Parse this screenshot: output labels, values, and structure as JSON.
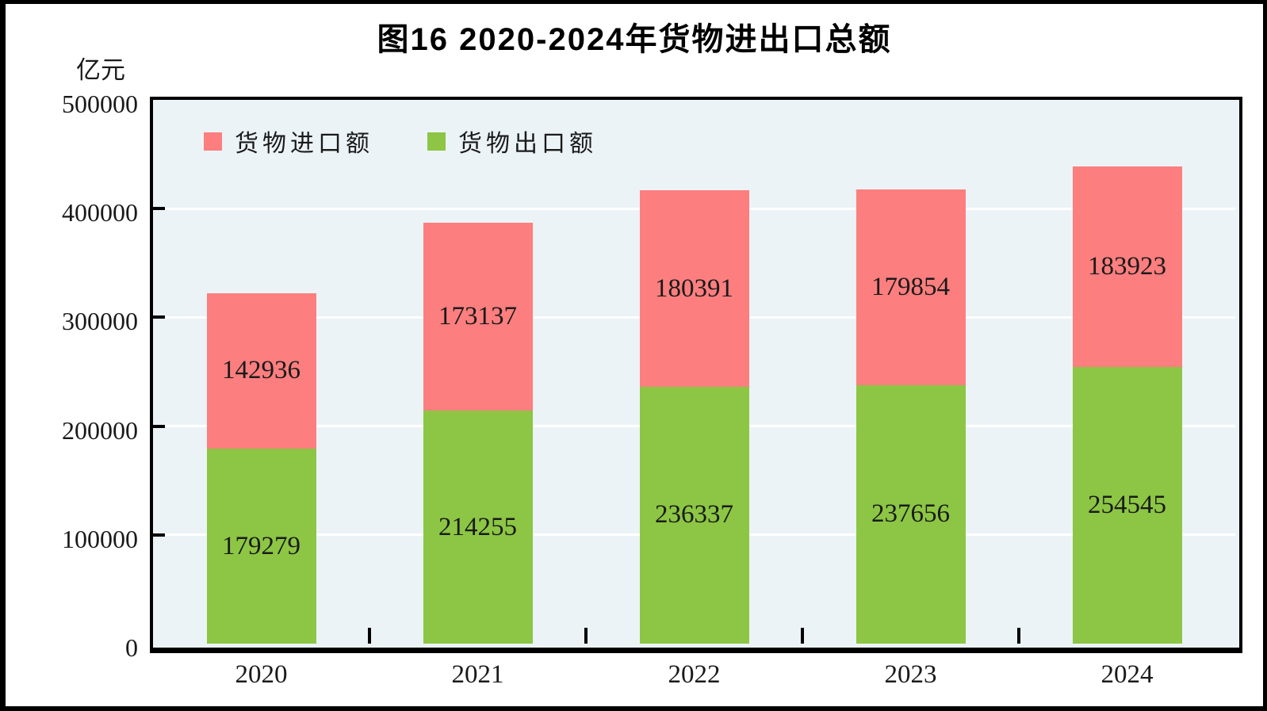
{
  "page": {
    "frame_color": "#000000",
    "background": "#ffffff"
  },
  "chart_data": {
    "type": "bar",
    "stacked": true,
    "title": "图16  2020-2024年货物进出口总额",
    "unit_label": "亿元",
    "categories": [
      "2020",
      "2021",
      "2022",
      "2023",
      "2024"
    ],
    "series": [
      {
        "name": "货物进口额",
        "role": "import",
        "color": "#fc7e7e",
        "stack_position": "top",
        "values": [
          142936,
          173137,
          180391,
          179854,
          183923
        ]
      },
      {
        "name": "货物出口额",
        "role": "export",
        "color": "#8cc644",
        "stack_position": "bottom",
        "values": [
          179279,
          214255,
          236337,
          237656,
          254545
        ]
      }
    ],
    "ylim": [
      0,
      500000
    ],
    "yticks": [
      "0",
      "100000",
      "200000",
      "300000",
      "400000",
      "500000"
    ],
    "grid": {
      "horizontal": true,
      "color": "#ffffff"
    },
    "legend_position": "top-left-inside",
    "plot_background": "#ecf3f7",
    "axis_color": "#000000",
    "bar_label_color": "#1a1a1a"
  }
}
